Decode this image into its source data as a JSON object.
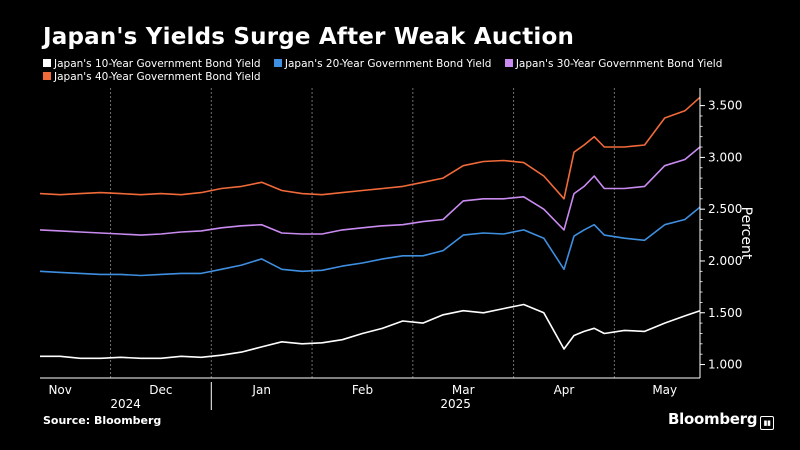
{
  "header": {
    "title": "Japan's Yields Surge After Weak Auction"
  },
  "footer": {
    "source": "Source: Bloomberg",
    "logo": "Bloomberg"
  },
  "colors": {
    "background": "#000000",
    "grid": "#6e6e6e",
    "s10": "#ffffff",
    "s20": "#3f8fe0",
    "s30": "#c98bf0",
    "s40": "#f06a3a"
  },
  "chart_data": {
    "type": "line",
    "x_axis": {
      "month_labels": [
        "Nov",
        "Dec",
        "Jan",
        "Feb",
        "Mar",
        "Apr",
        "May"
      ],
      "year_labels": [
        "2024",
        "2025"
      ],
      "month_index": [
        0,
        1,
        2,
        3,
        4,
        5,
        6
      ]
    },
    "ylabel": "Percent",
    "ylim": [
      0.87,
      3.67
    ],
    "y_ticks": [
      1.0,
      1.5,
      2.0,
      2.5,
      3.0,
      3.5
    ],
    "y_tick_labels": [
      "1.000",
      "1.500",
      "2.000",
      "2.500",
      "3.000",
      "3.500"
    ],
    "grid": "vertical-dashed",
    "legend_position": "top",
    "x_range": [
      -0.2,
      6.35
    ],
    "series": [
      {
        "name": "Japan's 10-Year Government Bond Yield",
        "color": "#ffffff",
        "x": [
          -0.2,
          0.0,
          0.2,
          0.4,
          0.6,
          0.8,
          1.0,
          1.2,
          1.4,
          1.6,
          1.8,
          2.0,
          2.2,
          2.4,
          2.6,
          2.8,
          3.0,
          3.2,
          3.4,
          3.6,
          3.8,
          4.0,
          4.2,
          4.4,
          4.6,
          4.8,
          5.0,
          5.1,
          5.2,
          5.3,
          5.4,
          5.6,
          5.8,
          6.0,
          6.2,
          6.35
        ],
        "y": [
          1.08,
          1.08,
          1.06,
          1.06,
          1.07,
          1.06,
          1.06,
          1.08,
          1.07,
          1.09,
          1.12,
          1.17,
          1.22,
          1.2,
          1.21,
          1.24,
          1.3,
          1.35,
          1.42,
          1.4,
          1.48,
          1.52,
          1.5,
          1.54,
          1.58,
          1.5,
          1.15,
          1.28,
          1.32,
          1.35,
          1.3,
          1.33,
          1.32,
          1.4,
          1.47,
          1.52
        ]
      },
      {
        "name": "Japan's 20-Year Government Bond Yield",
        "color": "#3f8fe0",
        "x": [
          -0.2,
          0.0,
          0.2,
          0.4,
          0.6,
          0.8,
          1.0,
          1.2,
          1.4,
          1.6,
          1.8,
          2.0,
          2.2,
          2.4,
          2.6,
          2.8,
          3.0,
          3.2,
          3.4,
          3.6,
          3.8,
          4.0,
          4.2,
          4.4,
          4.6,
          4.8,
          5.0,
          5.1,
          5.2,
          5.3,
          5.4,
          5.6,
          5.8,
          6.0,
          6.2,
          6.35
        ],
        "y": [
          1.9,
          1.89,
          1.88,
          1.87,
          1.87,
          1.86,
          1.87,
          1.88,
          1.88,
          1.92,
          1.96,
          2.02,
          1.92,
          1.9,
          1.91,
          1.95,
          1.98,
          2.02,
          2.05,
          2.05,
          2.1,
          2.25,
          2.27,
          2.26,
          2.3,
          2.22,
          1.92,
          2.24,
          2.3,
          2.35,
          2.25,
          2.22,
          2.2,
          2.35,
          2.4,
          2.52
        ]
      },
      {
        "name": "Japan's 30-Year Government Bond Yield",
        "color": "#c98bf0",
        "x": [
          -0.2,
          0.0,
          0.2,
          0.4,
          0.6,
          0.8,
          1.0,
          1.2,
          1.4,
          1.6,
          1.8,
          2.0,
          2.2,
          2.4,
          2.6,
          2.8,
          3.0,
          3.2,
          3.4,
          3.6,
          3.8,
          4.0,
          4.2,
          4.4,
          4.6,
          4.8,
          5.0,
          5.1,
          5.2,
          5.3,
          5.4,
          5.6,
          5.8,
          6.0,
          6.2,
          6.35
        ],
        "y": [
          2.3,
          2.29,
          2.28,
          2.27,
          2.26,
          2.25,
          2.26,
          2.28,
          2.29,
          2.32,
          2.34,
          2.35,
          2.27,
          2.26,
          2.26,
          2.3,
          2.32,
          2.34,
          2.35,
          2.38,
          2.4,
          2.58,
          2.6,
          2.6,
          2.62,
          2.5,
          2.3,
          2.65,
          2.72,
          2.82,
          2.7,
          2.7,
          2.72,
          2.92,
          2.98,
          3.1
        ]
      },
      {
        "name": "Japan's 40-Year Government Bond Yield",
        "color": "#f06a3a",
        "x": [
          -0.2,
          0.0,
          0.2,
          0.4,
          0.6,
          0.8,
          1.0,
          1.2,
          1.4,
          1.6,
          1.8,
          2.0,
          2.2,
          2.4,
          2.6,
          2.8,
          3.0,
          3.2,
          3.4,
          3.6,
          3.8,
          4.0,
          4.2,
          4.4,
          4.6,
          4.8,
          5.0,
          5.1,
          5.2,
          5.3,
          5.4,
          5.6,
          5.8,
          6.0,
          6.2,
          6.35
        ],
        "y": [
          2.65,
          2.64,
          2.65,
          2.66,
          2.65,
          2.64,
          2.65,
          2.64,
          2.66,
          2.7,
          2.72,
          2.76,
          2.68,
          2.65,
          2.64,
          2.66,
          2.68,
          2.7,
          2.72,
          2.76,
          2.8,
          2.92,
          2.96,
          2.97,
          2.95,
          2.82,
          2.6,
          3.05,
          3.12,
          3.2,
          3.1,
          3.1,
          3.12,
          3.38,
          3.45,
          3.58
        ]
      }
    ]
  }
}
